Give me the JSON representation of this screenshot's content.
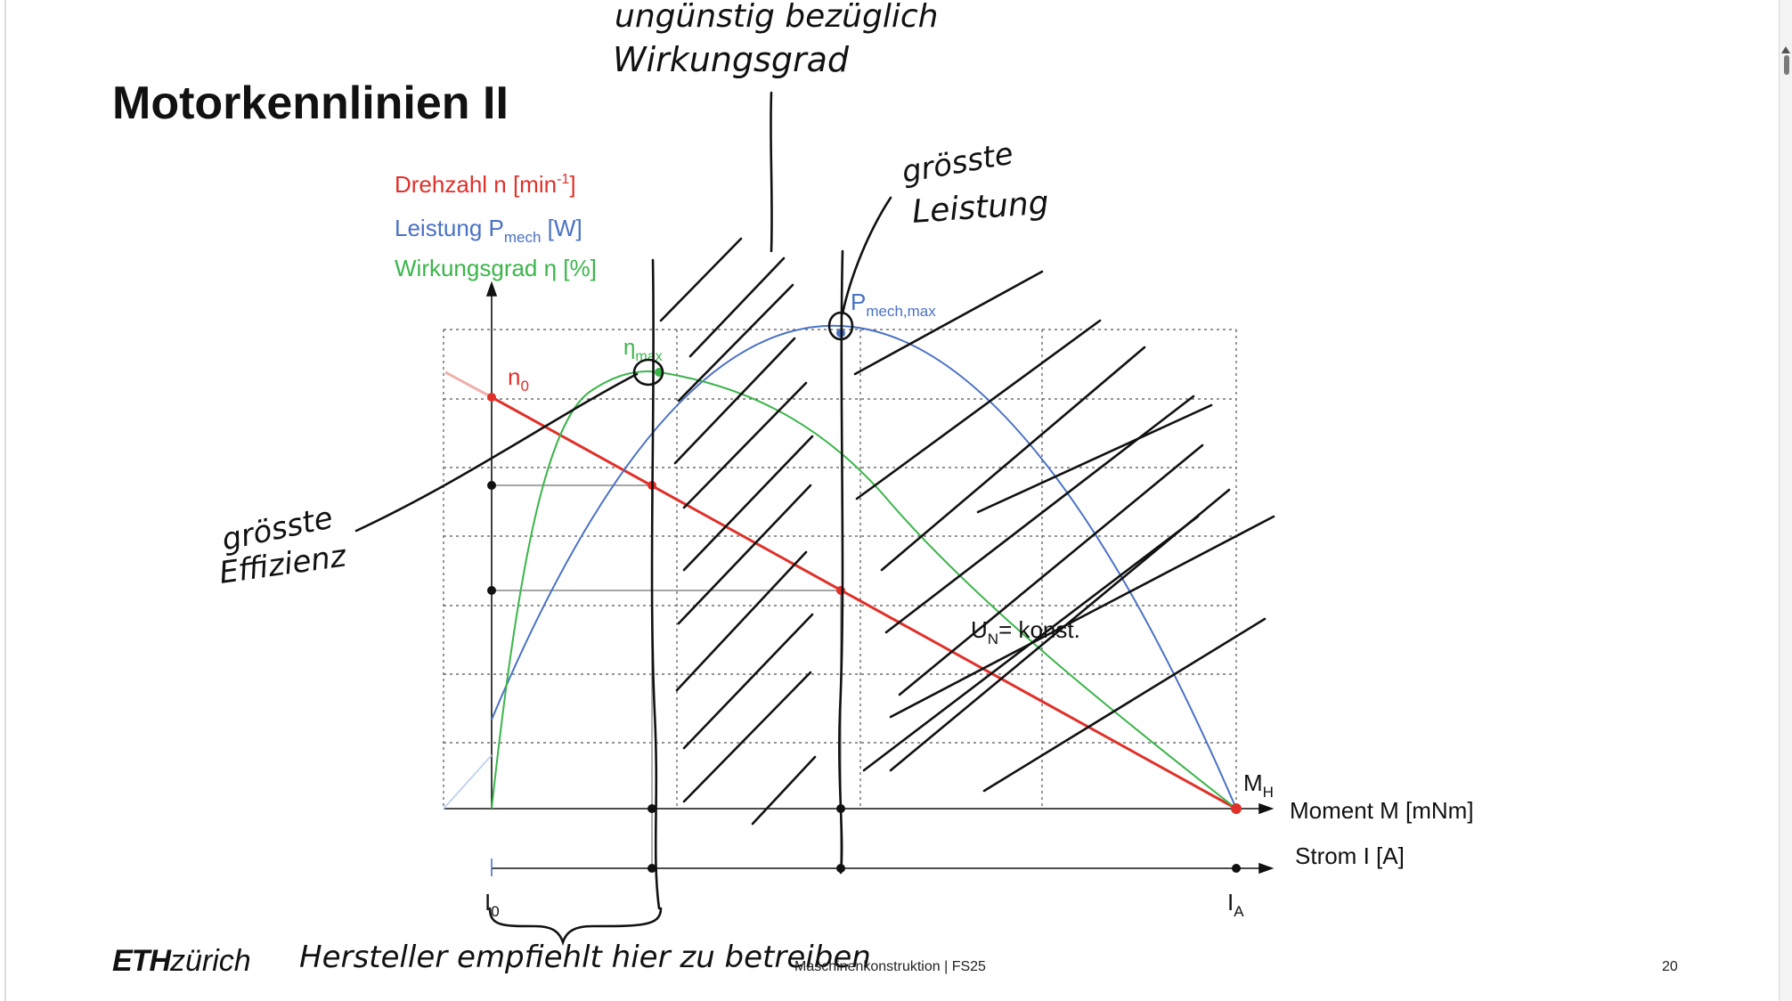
{
  "slide": {
    "title": "Motorkennlinien II",
    "footer_course": "Maschinenkonstruktion | FS25",
    "page_number": "20",
    "logo_eth": "ETH",
    "logo_zurich": "zürich"
  },
  "legend": {
    "speed": "Drehzahl n [min",
    "speed_exp": "-1",
    "speed_close": "]",
    "power": "Leistung P",
    "power_sub": "mech",
    "power_unit": " [W]",
    "efficiency": "Wirkungsgrad η [%]"
  },
  "labels": {
    "n0": "n",
    "n0_sub": "0",
    "eta_max": "η",
    "eta_max_sub": "max",
    "p_max": "P",
    "p_max_sub": "mech,max",
    "m_h": "M",
    "m_h_sub": "H",
    "un_const": "U",
    "un_sub": "N",
    "un_rest": "= konst.",
    "moment_axis": "Moment M [mNm]",
    "current_axis": "Strom I [A]",
    "i0": "I",
    "i0_sub": "0",
    "ia": "I",
    "ia_sub": "A"
  },
  "annotations": {
    "unfavorable_line1": "ungünstig bezüglich",
    "unfavorable_line2": "Wirkungsgrad",
    "max_power_line1": "grösste",
    "max_power_line2": "Leistung",
    "max_eff_line1": "grösste",
    "max_eff_line2": "Effizienz",
    "manufacturer": "Hersteller empfiehlt hier zu betreiben"
  },
  "colors": {
    "speed": "#e0302a",
    "power": "#4a72c4",
    "efficiency": "#3bb54a",
    "ink": "#111111",
    "grid": "#555555"
  },
  "chart_data": {
    "type": "line",
    "note_free": true,
    "x_axis": "Moment M [mNm]",
    "x_axis_secondary": "Strom I [A]",
    "series": [
      {
        "name": "Drehzahl n [min-1]",
        "shape": "linear falling from n0 at M=0 to 0 at MH"
      },
      {
        "name": "Leistung Pmech [W]",
        "shape": "parabola, maximum Pmech,max at M = MH/2"
      },
      {
        "name": "Wirkungsgrad η [%]",
        "shape": "rises steeply, maximum ηmax at low torque, falls to 0 at MH"
      }
    ]
  }
}
